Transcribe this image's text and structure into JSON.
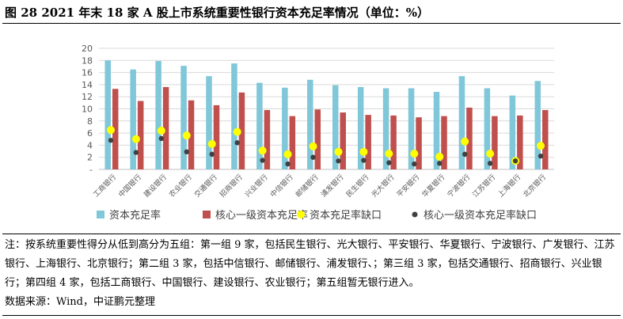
{
  "title": "图 28  2021 年末 18 家 A 股上市系统重要性银行资本充足率情况（单位：%）",
  "note": "注：按系统重要性得分从低到高分为五组：第一组 9 家，包括民生银行、光大银行、平安银行、华夏银行、宁波银行、广发银行、江苏银行、上海银行、北京银行；第二组 3 家，包括中信银行、邮储银行、浦发银行、；第三组 3 家，包括交通银行、招商银行、兴业银行；第四组 4 家，包括工商银行、中国银行、建设银行、农业银行；第五组暂无银行进入。",
  "source": "数据来源：Wind，中证鹏元整理",
  "chart_data": {
    "type": "bar",
    "categories": [
      "工商银行",
      "中国银行",
      "建设银行",
      "农业银行",
      "交通银行",
      "招商银行",
      "兴业银行",
      "中信银行",
      "邮储银行",
      "浦发银行",
      "民生银行",
      "光大银行",
      "平安银行",
      "华夏银行",
      "宁波银行",
      "江苏银行",
      "上海银行",
      "北京银行"
    ],
    "ylim": [
      0,
      20
    ],
    "yticks": [
      "-",
      "2",
      "4",
      "6",
      "8",
      "10",
      "12",
      "14",
      "16",
      "18",
      "20"
    ],
    "legend_position": "bottom",
    "grid": true,
    "series": [
      {
        "name": "资本充足率",
        "kind": "bar",
        "color": "#7fc7d9",
        "values": [
          18.0,
          16.5,
          17.9,
          17.1,
          15.4,
          17.5,
          14.3,
          13.5,
          14.8,
          13.9,
          13.6,
          13.4,
          13.4,
          12.8,
          15.4,
          13.4,
          12.2,
          14.6
        ]
      },
      {
        "name": "核心一级资本充足率",
        "kind": "bar",
        "color": "#c0504d",
        "values": [
          13.3,
          11.3,
          13.6,
          11.4,
          10.6,
          12.7,
          9.8,
          8.8,
          9.9,
          9.4,
          9.0,
          8.9,
          8.6,
          8.8,
          10.2,
          8.8,
          8.9,
          9.8
        ]
      },
      {
        "name": "资本充足率缺口",
        "kind": "dot",
        "color": "#ffff00",
        "values": [
          6.5,
          5.0,
          6.4,
          5.6,
          4.2,
          6.2,
          3.1,
          2.5,
          3.8,
          2.9,
          2.9,
          2.6,
          2.6,
          2.1,
          4.6,
          2.6,
          1.4,
          3.9
        ]
      },
      {
        "name": "核心一级资本充足率缺口",
        "kind": "dot",
        "color": "#404040",
        "values": [
          4.8,
          2.8,
          5.1,
          2.9,
          2.5,
          4.4,
          1.5,
          0.9,
          2.0,
          1.4,
          1.5,
          1.1,
          0.9,
          1.0,
          2.5,
          1.0,
          1.4,
          2.2
        ]
      }
    ]
  }
}
